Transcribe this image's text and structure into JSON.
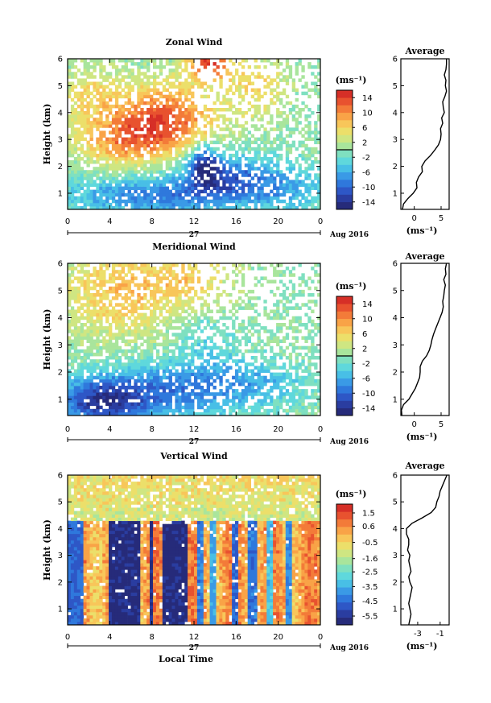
{
  "chart_data": [
    {
      "type": "heatmap",
      "title": "Zonal Wind",
      "ylabel": "Height (km)",
      "y_ticks": [
        "1",
        "2",
        "3",
        "4",
        "5",
        "6"
      ],
      "ylim": [
        0.4,
        6
      ],
      "xlim": [
        0,
        24
      ],
      "x_ticks": [
        "0",
        "4",
        "8",
        "12",
        "16",
        "20",
        "0"
      ],
      "x_tick_values": [
        0,
        4,
        8,
        12,
        16,
        20,
        24
      ],
      "date_label": "27",
      "date_suffix": "Aug 2016",
      "colorbar": {
        "unit": "(ms⁻¹)",
        "vmin": -16,
        "vmax": 16,
        "tick_labels": [
          "14",
          "10",
          "6",
          "2",
          "-2",
          "-6",
          "-10",
          "-14"
        ],
        "tick_values": [
          14,
          10,
          6,
          2,
          -2,
          -6,
          -10,
          -14
        ],
        "zero_line": true
      },
      "field_blobs": [
        {
          "t": 9,
          "z": 3.8,
          "st": 3.5,
          "sz": 0.9,
          "a": 13
        },
        {
          "t": 13.5,
          "z": 5.8,
          "st": 1.5,
          "sz": 0.4,
          "a": 14
        },
        {
          "t": 5,
          "z": 2.9,
          "st": 3,
          "sz": 0.6,
          "a": 7
        },
        {
          "t": 2,
          "z": 4.6,
          "st": 2,
          "sz": 0.8,
          "a": 5
        },
        {
          "t": 18,
          "z": 5,
          "st": 2,
          "sz": 0.8,
          "a": 6
        },
        {
          "t": 8,
          "z": 0.9,
          "st": 6,
          "sz": 0.5,
          "a": -8
        },
        {
          "t": 15,
          "z": 1.6,
          "st": 3,
          "sz": 0.6,
          "a": -9
        },
        {
          "t": 13,
          "z": 2.1,
          "st": 1,
          "sz": 0.5,
          "a": -11
        },
        {
          "t": 21,
          "z": 1.2,
          "st": 3,
          "sz": 0.6,
          "a": -5
        }
      ],
      "gaps_fraction": 0.28,
      "profile": {
        "title": "Average",
        "xlabel": "(ms⁻¹)",
        "x_ticks": [
          "0",
          "5"
        ],
        "x_tick_values": [
          0,
          5
        ],
        "xlim": [
          -2.5,
          6.5
        ],
        "z": [
          0.4,
          0.6,
          0.8,
          1.0,
          1.2,
          1.4,
          1.6,
          1.8,
          2.0,
          2.2,
          2.4,
          2.6,
          2.8,
          3.0,
          3.2,
          3.4,
          3.6,
          3.8,
          4.0,
          4.2,
          4.4,
          4.6,
          4.8,
          5.0,
          5.2,
          5.4,
          5.6,
          5.8,
          6.0
        ],
        "u": [
          -2.2,
          -2.0,
          -1.2,
          -0.2,
          0.5,
          0.4,
          0.8,
          1.5,
          1.4,
          2.0,
          3.0,
          3.8,
          4.5,
          4.9,
          5.0,
          4.9,
          5.3,
          5.1,
          5.6,
          5.4,
          5.3,
          5.7,
          6.0,
          5.8,
          5.9,
          5.6,
          5.9,
          6.0,
          6.0
        ]
      }
    },
    {
      "type": "heatmap",
      "title": "Meridional Wind",
      "ylabel": "Height (km)",
      "y_ticks": [
        "1",
        "2",
        "3",
        "4",
        "5",
        "6"
      ],
      "ylim": [
        0.4,
        6
      ],
      "xlim": [
        0,
        24
      ],
      "x_ticks": [
        "0",
        "4",
        "8",
        "12",
        "16",
        "20",
        "0"
      ],
      "x_tick_values": [
        0,
        4,
        8,
        12,
        16,
        20,
        24
      ],
      "date_label": "27",
      "date_suffix": "Aug 2016",
      "colorbar": {
        "unit": "(ms⁻¹)",
        "vmin": -16,
        "vmax": 16,
        "tick_labels": [
          "14",
          "10",
          "6",
          "2",
          "-2",
          "-6",
          "-10",
          "-14"
        ],
        "tick_values": [
          14,
          10,
          6,
          2,
          -2,
          -6,
          -10,
          -14
        ],
        "zero_line": true
      },
      "field_blobs": [
        {
          "t": 5,
          "z": 5,
          "st": 4,
          "sz": 1.2,
          "a": 7
        },
        {
          "t": 12,
          "z": 5.5,
          "st": 3,
          "sz": 0.8,
          "a": 5
        },
        {
          "t": 3,
          "z": 0.9,
          "st": 3,
          "sz": 0.6,
          "a": -11
        },
        {
          "t": 9,
          "z": 1.3,
          "st": 5,
          "sz": 0.7,
          "a": -8
        },
        {
          "t": 17,
          "z": 1.6,
          "st": 4,
          "sz": 0.6,
          "a": -5
        },
        {
          "t": 13,
          "z": 3.2,
          "st": 2,
          "sz": 0.7,
          "a": -3
        }
      ],
      "gaps_fraction": 0.3,
      "profile": {
        "title": "Average",
        "xlabel": "(ms⁻¹)",
        "x_ticks": [
          "0",
          "5"
        ],
        "x_tick_values": [
          0,
          5
        ],
        "xlim": [
          -2.5,
          6.5
        ],
        "z": [
          0.4,
          0.6,
          0.8,
          1.0,
          1.2,
          1.4,
          1.6,
          1.8,
          2.0,
          2.2,
          2.4,
          2.6,
          2.8,
          3.0,
          3.2,
          3.4,
          3.6,
          3.8,
          4.0,
          4.2,
          4.4,
          4.6,
          4.8,
          5.0,
          5.2,
          5.4,
          5.6,
          5.8,
          6.0
        ],
        "u": [
          -2.3,
          -2.4,
          -2.0,
          -1.0,
          -0.4,
          0.2,
          0.6,
          1.0,
          1.1,
          1.1,
          1.5,
          2.3,
          2.8,
          3.1,
          3.3,
          3.6,
          4.0,
          4.4,
          4.8,
          5.2,
          5.4,
          5.3,
          5.5,
          5.6,
          5.8,
          5.5,
          5.9,
          5.8,
          6.0
        ]
      }
    },
    {
      "type": "heatmap",
      "title": "Vertical Wind",
      "ylabel": "Height (km)",
      "xlabel": "Local Time",
      "y_ticks": [
        "1",
        "2",
        "3",
        "4",
        "5",
        "6"
      ],
      "ylim": [
        0.4,
        6
      ],
      "xlim": [
        0,
        24
      ],
      "x_ticks": [
        "0",
        "4",
        "8",
        "12",
        "16",
        "20",
        "0"
      ],
      "x_tick_values": [
        0,
        4,
        8,
        12,
        16,
        20,
        24
      ],
      "date_label": "27",
      "date_suffix": "Aug 2016",
      "colorbar": {
        "unit": "(ms⁻¹)",
        "vmin": -6.1,
        "vmax": 2.1,
        "tick_labels": [
          "1.5",
          "0.6",
          "-0.5",
          "-1.6",
          "-2.5",
          "-3.5",
          "-4.5",
          "-5.5"
        ],
        "tick_values": [
          1.5,
          0.6,
          -0.5,
          -1.6,
          -2.5,
          -3.5,
          -4.5,
          -5.5
        ],
        "zero_line": false
      },
      "rain_top": 4.3,
      "rain_bands": [
        {
          "t0": 0.0,
          "t1": 1.5,
          "w": -4.6
        },
        {
          "t0": 4.0,
          "t1": 7.0,
          "w": -5.8
        },
        {
          "t0": 7.7,
          "t1": 8.2,
          "w": -5.6
        },
        {
          "t0": 9.0,
          "t1": 11.5,
          "w": -5.8
        },
        {
          "t0": 12.2,
          "t1": 12.8,
          "w": -4.2
        },
        {
          "t0": 13.6,
          "t1": 14.1,
          "w": -3.6
        },
        {
          "t0": 15.6,
          "t1": 16.3,
          "w": -4.6
        },
        {
          "t0": 17.0,
          "t1": 18.0,
          "w": -4.3
        },
        {
          "t0": 18.9,
          "t1": 19.6,
          "w": -3.2
        },
        {
          "t0": 20.6,
          "t1": 21.3,
          "w": -4.0
        }
      ],
      "gaps_fraction": 0.12,
      "profile": {
        "title": "Average",
        "xlabel": "(ms⁻¹)",
        "x_ticks": [
          "-3",
          "-1"
        ],
        "x_tick_values": [
          -3,
          -1
        ],
        "xlim": [
          -4.5,
          -0.2
        ],
        "z": [
          0.4,
          0.6,
          0.8,
          1.0,
          1.2,
          1.4,
          1.6,
          1.8,
          2.0,
          2.2,
          2.4,
          2.6,
          2.8,
          3.0,
          3.2,
          3.4,
          3.6,
          3.8,
          4.0,
          4.2,
          4.4,
          4.6,
          4.8,
          5.0,
          5.2,
          5.4,
          5.6,
          5.8,
          6.0
        ],
        "u": [
          -3.8,
          -3.7,
          -3.6,
          -3.7,
          -3.8,
          -3.7,
          -3.6,
          -3.5,
          -3.7,
          -3.8,
          -3.6,
          -3.7,
          -3.8,
          -3.7,
          -3.9,
          -3.8,
          -3.8,
          -4.0,
          -4.0,
          -3.5,
          -2.6,
          -1.8,
          -1.4,
          -1.3,
          -1.1,
          -1.0,
          -0.8,
          -0.6,
          -0.4
        ]
      }
    }
  ]
}
